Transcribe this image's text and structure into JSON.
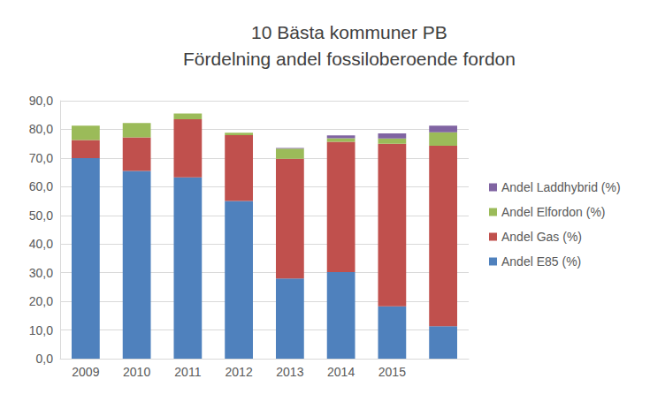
{
  "chart_data": {
    "type": "bar",
    "title": "10 Bästa kommuner PB\nFördelning andel fossiloberoende fordon",
    "categories": [
      "2009",
      "2010",
      "2011",
      "2012",
      "2013",
      "2014",
      "2015",
      null
    ],
    "stacked": true,
    "grid": true,
    "legend": "right",
    "ylim": [
      0,
      90
    ],
    "yticks": [
      {
        "value": 0,
        "label": "0,0"
      },
      {
        "value": 10,
        "label": "10,0"
      },
      {
        "value": 20,
        "label": "20,0"
      },
      {
        "value": 30,
        "label": "30,0"
      },
      {
        "value": 40,
        "label": "40,0"
      },
      {
        "value": 50,
        "label": "50,0"
      },
      {
        "value": 60,
        "label": "60,0"
      },
      {
        "value": 70,
        "label": "70,0"
      },
      {
        "value": 80,
        "label": "80,0"
      },
      {
        "value": 90,
        "label": "90,0"
      }
    ],
    "series": [
      {
        "name": "Andel E85 (%)",
        "color": "#4f81bd",
        "values": [
          70,
          65.5,
          63.3,
          55,
          28,
          30.2,
          18.3,
          11.3
        ]
      },
      {
        "name": "Andel Gas (%)",
        "color": "#c0504d",
        "values": [
          6.3,
          11.7,
          20.2,
          23,
          41.7,
          45.5,
          56.7,
          63
        ]
      },
      {
        "name": "Andel Elfordon (%)",
        "color": "#9bbb59",
        "values": [
          5,
          5,
          2,
          0.8,
          3.6,
          1.2,
          1.8,
          4.7
        ]
      },
      {
        "name": "Andel Laddhybrid (%)",
        "color": "#8064a2",
        "values": [
          0,
          0,
          0,
          0,
          0.2,
          1,
          1.8,
          2.3
        ]
      }
    ]
  }
}
